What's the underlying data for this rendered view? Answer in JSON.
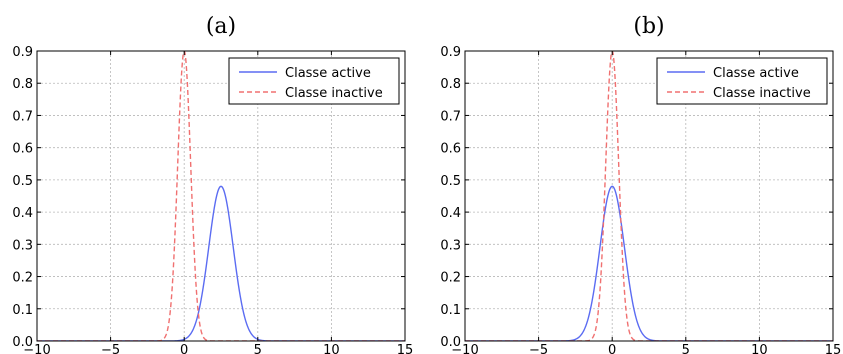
{
  "chart_data": [
    {
      "type": "line",
      "title": "(a)",
      "xlim": [
        -10,
        15
      ],
      "ylim": [
        0,
        0.9
      ],
      "xticks": [
        -10,
        -5,
        0,
        5,
        10,
        15
      ],
      "yticks": [
        0.0,
        0.1,
        0.2,
        0.3,
        0.4,
        0.5,
        0.6,
        0.7,
        0.8,
        0.9
      ],
      "grid": true,
      "legend_position": "top-right",
      "series": [
        {
          "name": "Classe active",
          "color": "#5b6cf2",
          "style": "solid",
          "mean": 2.5,
          "peak": 0.48
        },
        {
          "name": "Classe inactive",
          "color": "#f07070",
          "style": "dashed",
          "mean": 0.0,
          "peak": 0.9
        }
      ]
    },
    {
      "type": "line",
      "title": "(b)",
      "xlim": [
        -10,
        15
      ],
      "ylim": [
        0,
        0.9
      ],
      "xticks": [
        -10,
        -5,
        0,
        5,
        10,
        15
      ],
      "yticks": [
        0.0,
        0.1,
        0.2,
        0.3,
        0.4,
        0.5,
        0.6,
        0.7,
        0.8,
        0.9
      ],
      "grid": true,
      "legend_position": "top-right",
      "series": [
        {
          "name": "Classe active",
          "color": "#5b6cf2",
          "style": "solid",
          "mean": 0.0,
          "peak": 0.48
        },
        {
          "name": "Classe inactive",
          "color": "#f07070",
          "style": "dashed",
          "mean": 0.0,
          "peak": 0.9
        }
      ]
    }
  ]
}
